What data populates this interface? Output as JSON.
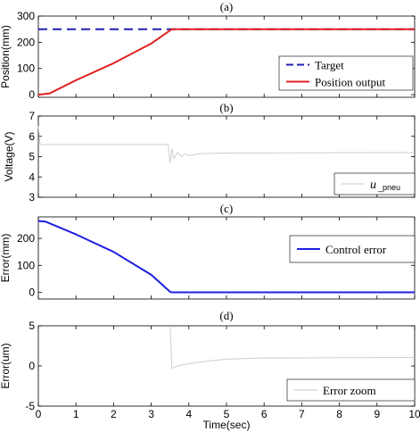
{
  "figure": {
    "xlabel": "Time(sec)"
  },
  "chart_data": [
    {
      "type": "line",
      "title": "(a)",
      "ylabel": "Position(mm)",
      "xlim": [
        0,
        10
      ],
      "ylim": [
        -10,
        300
      ],
      "xticks": [
        0,
        1,
        2,
        3,
        4,
        5,
        6,
        7,
        8,
        9,
        10
      ],
      "yticks": [
        0,
        100,
        200,
        300
      ],
      "series": [
        {
          "name": "Target",
          "color": "#1f1fb4",
          "dash": true,
          "points": [
            [
              0,
              250
            ],
            [
              10,
              250
            ]
          ]
        },
        {
          "name": "Position output",
          "color": "#e01f1f",
          "dash": false,
          "points": [
            [
              0,
              0
            ],
            [
              0.3,
              5
            ],
            [
              1,
              55
            ],
            [
              2,
              120
            ],
            [
              3,
              195
            ],
            [
              3.5,
              245
            ],
            [
              3.55,
              250
            ],
            [
              10,
              250
            ]
          ]
        }
      ],
      "legend": "bottom-right"
    },
    {
      "type": "line",
      "title": "(b)",
      "ylabel": "Voltage(V)",
      "xlim": [
        0,
        10
      ],
      "ylim": [
        3,
        7
      ],
      "yticks": [
        3,
        4,
        5,
        6,
        7
      ],
      "series": [
        {
          "name": "u_pneu",
          "color": "#c8c8c8",
          "dash": false,
          "points": [
            [
              0,
              6.5
            ],
            [
              0.05,
              5.6
            ],
            [
              3.45,
              5.6
            ],
            [
              3.5,
              4.7
            ],
            [
              3.55,
              5.4
            ],
            [
              3.6,
              4.9
            ],
            [
              3.7,
              5.2
            ],
            [
              3.8,
              5.0
            ],
            [
              3.9,
              5.15
            ],
            [
              4.0,
              5.05
            ],
            [
              4.3,
              5.15
            ],
            [
              5,
              5.18
            ],
            [
              10,
              5.2
            ]
          ]
        }
      ],
      "legend_math": "u",
      "legend_sub": "_pneu",
      "legend": "bottom-right"
    },
    {
      "type": "line",
      "title": "(c)",
      "ylabel": "Error(mm)",
      "xlim": [
        0,
        10
      ],
      "ylim": [
        -25,
        280
      ],
      "yticks": [
        0,
        100,
        200
      ],
      "series": [
        {
          "name": "Control error",
          "color": "#1f1fe0",
          "dash": false,
          "points": [
            [
              0,
              265
            ],
            [
              0.2,
              262
            ],
            [
              1,
              215
            ],
            [
              2,
              150
            ],
            [
              3,
              65
            ],
            [
              3.5,
              2
            ],
            [
              3.55,
              0
            ],
            [
              10,
              0
            ]
          ]
        }
      ],
      "legend": "right"
    },
    {
      "type": "line",
      "title": "(d)",
      "ylabel": "Error(um)",
      "xlim": [
        0,
        10
      ],
      "ylim": [
        -5,
        5
      ],
      "yticks": [
        -5,
        0,
        5
      ],
      "series": [
        {
          "name": "Error zoom",
          "color": "#c8c8c8",
          "dash": false,
          "points": [
            [
              3.5,
              5
            ],
            [
              3.55,
              -0.3
            ],
            [
              3.7,
              0
            ],
            [
              4,
              0.3
            ],
            [
              4.5,
              0.6
            ],
            [
              5,
              0.85
            ],
            [
              6,
              1.0
            ],
            [
              10,
              1.05
            ]
          ]
        }
      ],
      "legend": "bottom-right"
    }
  ]
}
